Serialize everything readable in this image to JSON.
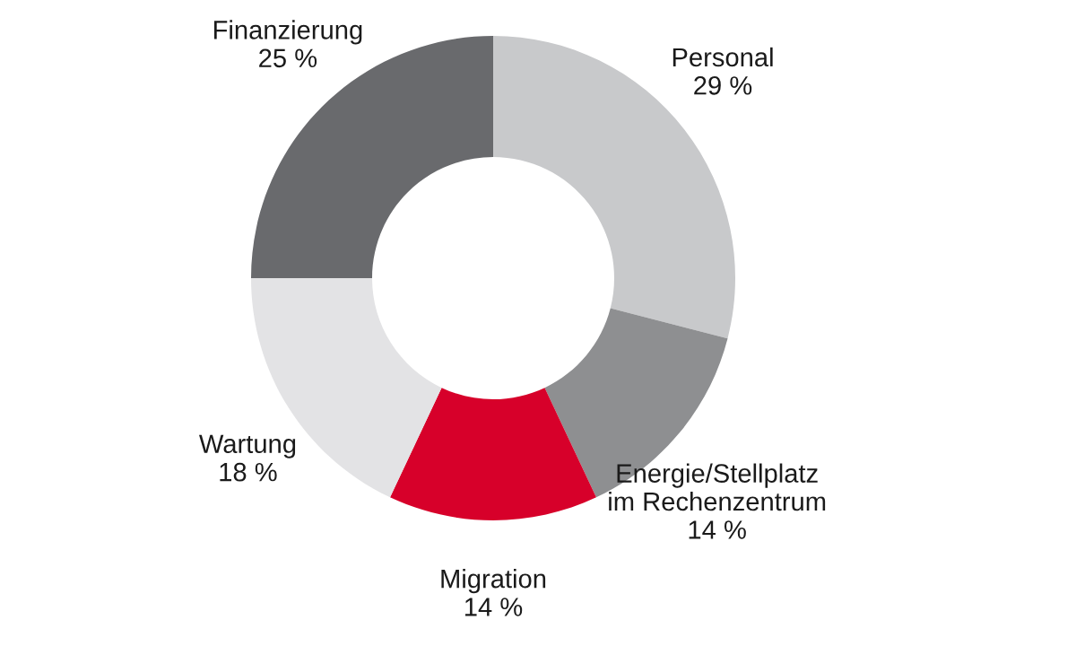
{
  "chart_data": {
    "type": "donut",
    "categories": [
      "Personal",
      "Energie/Stellplatz\nim Rechenzentrum",
      "Migration",
      "Wartung",
      "Finanzierung"
    ],
    "values": [
      29,
      14,
      14,
      18,
      25
    ],
    "value_labels": [
      "29 %",
      "14 %",
      "14 %",
      "18 %",
      "25 %"
    ],
    "colors": [
      "#c8c9cb",
      "#8e8f91",
      "#d7002a",
      "#e3e3e5",
      "#696a6d"
    ]
  }
}
